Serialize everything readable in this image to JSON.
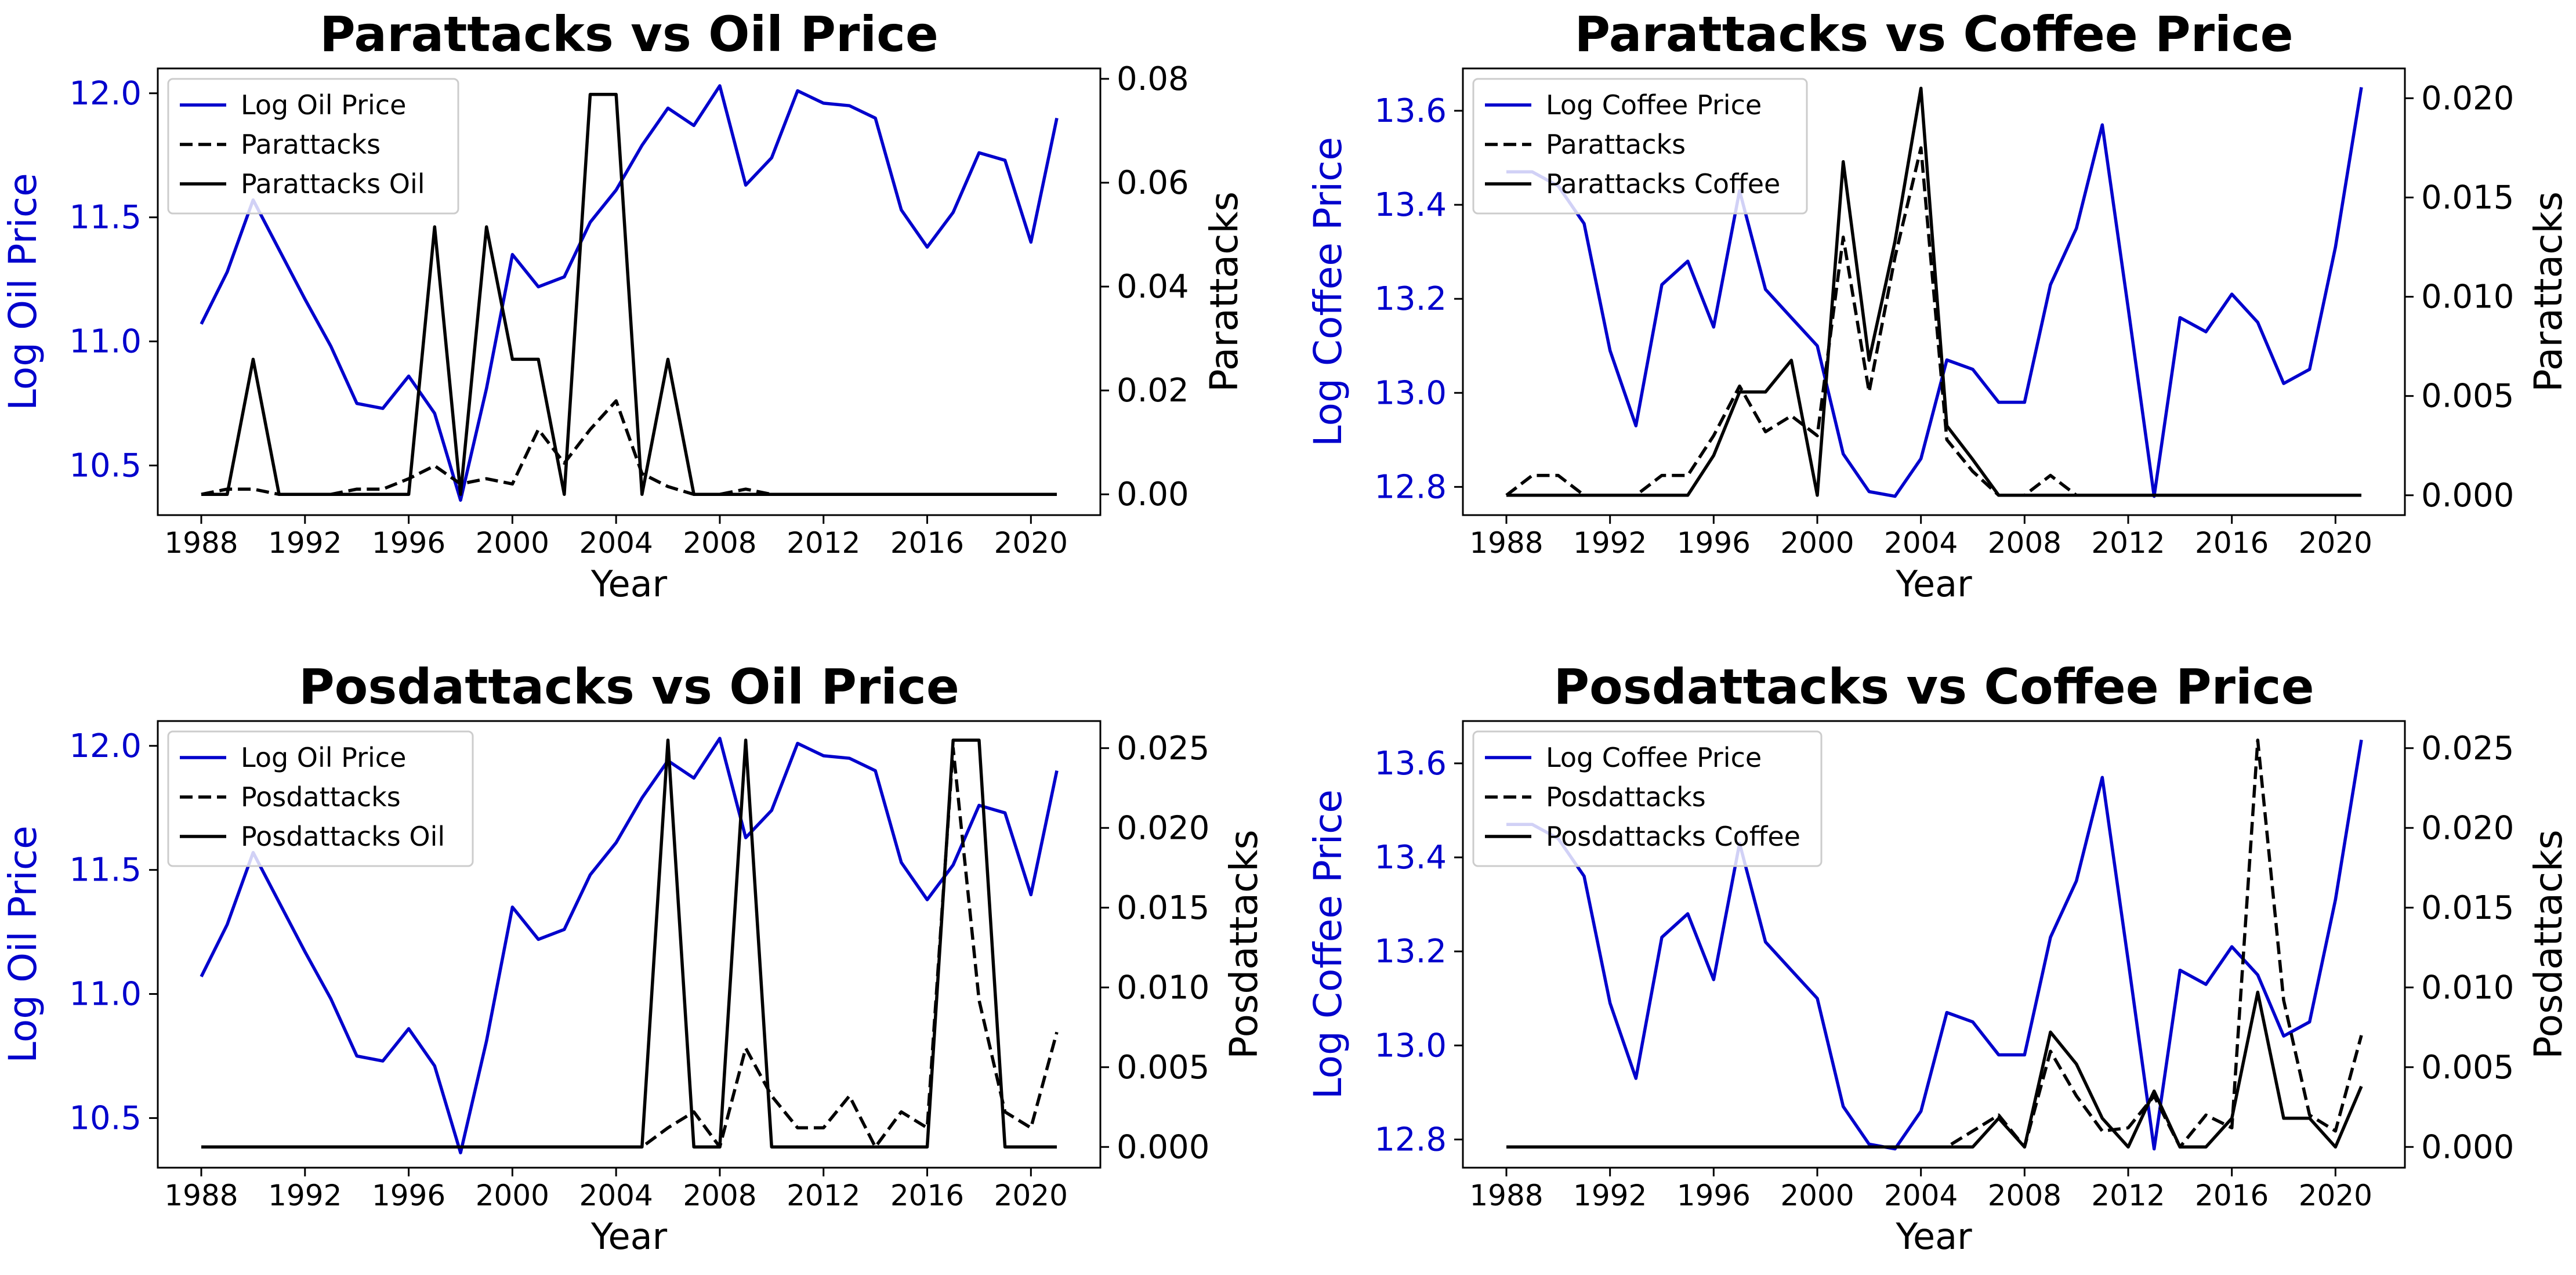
{
  "colors": {
    "oil": "#0000cc",
    "coffee": "#0000cc",
    "attacks": "#000000"
  },
  "chart_data": [
    {
      "type": "line",
      "title": "Parattacks vs Oil Price",
      "xlabel": "Year",
      "ylabel_left": "Log Oil Price",
      "ylabel_right": "Parattacks",
      "xlim": [
        1988,
        2021
      ],
      "ylim_left": [
        10.3,
        12.1
      ],
      "ylim_right": [
        -0.004,
        0.082
      ],
      "xticks": [
        "1988",
        "1992",
        "1996",
        "2000",
        "2004",
        "2008",
        "2012",
        "2016",
        "2020"
      ],
      "yticks_left": [
        "10.5",
        "11.0",
        "11.5",
        "12.0"
      ],
      "yticks_right": [
        "0.00",
        "0.02",
        "0.04",
        "0.06",
        "0.08"
      ],
      "legend_position": "top-left",
      "x": [
        1988,
        1989,
        1990,
        1991,
        1992,
        1993,
        1994,
        1995,
        1996,
        1997,
        1998,
        1999,
        2000,
        2001,
        2002,
        2003,
        2004,
        2005,
        2006,
        2007,
        2008,
        2009,
        2010,
        2011,
        2012,
        2013,
        2014,
        2015,
        2016,
        2017,
        2018,
        2019,
        2020,
        2021
      ],
      "series": [
        {
          "name": "Log Oil Price",
          "axis": "left",
          "style": "solid",
          "color": "#0000cc",
          "values": [
            11.07,
            11.28,
            11.57,
            11.37,
            11.17,
            10.98,
            10.75,
            10.73,
            10.86,
            10.71,
            10.36,
            10.81,
            11.35,
            11.22,
            11.26,
            11.48,
            11.61,
            11.79,
            11.94,
            11.87,
            12.03,
            11.63,
            11.74,
            12.01,
            11.96,
            11.95,
            11.9,
            11.53,
            11.38,
            11.52,
            11.76,
            11.73,
            11.4,
            11.9
          ]
        },
        {
          "name": "Parattacks",
          "axis": "right",
          "style": "dashed",
          "color": "#000000",
          "values": [
            0,
            0.001,
            0.001,
            0,
            0,
            0,
            0.001,
            0.001,
            0.003,
            0.0055,
            0.002,
            0.003,
            0.002,
            0.0125,
            0.006,
            0.0125,
            0.018,
            0.004,
            0.0015,
            0,
            0,
            0.001,
            0,
            0,
            0,
            0,
            0,
            0,
            0,
            0,
            0,
            0,
            0,
            0
          ]
        },
        {
          "name": "Parattacks Oil",
          "axis": "right",
          "style": "solid",
          "color": "#000000",
          "values": [
            0,
            0,
            0.026,
            0,
            0,
            0,
            0,
            0,
            0,
            0.0515,
            0,
            0.0515,
            0.026,
            0.026,
            0,
            0.077,
            0.077,
            0,
            0.026,
            0,
            0,
            0,
            0,
            0,
            0,
            0,
            0,
            0,
            0,
            0,
            0,
            0,
            0,
            0
          ]
        }
      ]
    },
    {
      "type": "line",
      "title": "Parattacks vs Coffee Price",
      "xlabel": "Year",
      "ylabel_left": "Log Coffee Price",
      "ylabel_right": "Parattacks",
      "xlim": [
        1988,
        2021
      ],
      "ylim_left": [
        12.74,
        13.69
      ],
      "ylim_right": [
        -0.001,
        0.0215
      ],
      "xticks": [
        "1988",
        "1992",
        "1996",
        "2000",
        "2004",
        "2008",
        "2012",
        "2016",
        "2020"
      ],
      "yticks_left": [
        "12.8",
        "13.0",
        "13.2",
        "13.4",
        "13.6"
      ],
      "yticks_right": [
        "0.000",
        "0.005",
        "0.010",
        "0.015",
        "0.020"
      ],
      "legend_position": "top-left",
      "x": [
        1988,
        1989,
        1990,
        1991,
        1992,
        1993,
        1994,
        1995,
        1996,
        1997,
        1998,
        1999,
        2000,
        2001,
        2002,
        2003,
        2004,
        2005,
        2006,
        2007,
        2008,
        2009,
        2010,
        2011,
        2012,
        2013,
        2014,
        2015,
        2016,
        2017,
        2018,
        2019,
        2020,
        2021
      ],
      "series": [
        {
          "name": "Log Coffee Price",
          "axis": "left",
          "style": "solid",
          "color": "#0000cc",
          "values": [
            13.47,
            13.47,
            13.44,
            13.36,
            13.09,
            12.93,
            13.23,
            13.28,
            13.14,
            13.43,
            13.22,
            13.16,
            13.1,
            12.87,
            12.79,
            12.78,
            12.86,
            13.07,
            13.05,
            12.98,
            12.98,
            13.23,
            13.35,
            13.57,
            13.18,
            12.78,
            13.16,
            13.13,
            13.21,
            13.15,
            13.02,
            13.05,
            13.31,
            13.65
          ]
        },
        {
          "name": "Parattacks",
          "axis": "right",
          "style": "dashed",
          "color": "#000000",
          "values": [
            0,
            0.001,
            0.001,
            0,
            0,
            0,
            0.001,
            0.001,
            0.003,
            0.0055,
            0.0032,
            0.004,
            0.003,
            0.013,
            0.0052,
            0.012,
            0.0175,
            0.0028,
            0.0012,
            0,
            0,
            0.001,
            0,
            0,
            0,
            0,
            0,
            0,
            0,
            0,
            0,
            0,
            0,
            0
          ]
        },
        {
          "name": "Parattacks Coffee",
          "axis": "right",
          "style": "solid",
          "color": "#000000",
          "values": [
            0,
            0,
            0,
            0,
            0,
            0,
            0,
            0,
            0.002,
            0.0052,
            0.0052,
            0.0068,
            0,
            0.0168,
            0.0068,
            0.0128,
            0.0205,
            0.0035,
            0.0018,
            0,
            0,
            0,
            0,
            0,
            0,
            0,
            0,
            0,
            0,
            0,
            0,
            0,
            0,
            0
          ]
        }
      ]
    },
    {
      "type": "line",
      "title": "Posdattacks vs Oil Price",
      "xlabel": "Year",
      "ylabel_left": "Log Oil Price",
      "ylabel_right": "Posdattacks",
      "xlim": [
        1988,
        2021
      ],
      "ylim_left": [
        10.3,
        12.1
      ],
      "ylim_right": [
        -0.0013,
        0.0267
      ],
      "xticks": [
        "1988",
        "1992",
        "1996",
        "2000",
        "2004",
        "2008",
        "2012",
        "2016",
        "2020"
      ],
      "yticks_left": [
        "10.5",
        "11.0",
        "11.5",
        "12.0"
      ],
      "yticks_right": [
        "0.000",
        "0.005",
        "0.010",
        "0.015",
        "0.020",
        "0.025"
      ],
      "legend_position": "top-left",
      "x": [
        1988,
        1989,
        1990,
        1991,
        1992,
        1993,
        1994,
        1995,
        1996,
        1997,
        1998,
        1999,
        2000,
        2001,
        2002,
        2003,
        2004,
        2005,
        2006,
        2007,
        2008,
        2009,
        2010,
        2011,
        2012,
        2013,
        2014,
        2015,
        2016,
        2017,
        2018,
        2019,
        2020,
        2021
      ],
      "series": [
        {
          "name": "Log Oil Price",
          "axis": "left",
          "style": "solid",
          "color": "#0000cc",
          "values": [
            11.07,
            11.28,
            11.57,
            11.37,
            11.17,
            10.98,
            10.75,
            10.73,
            10.86,
            10.71,
            10.36,
            10.81,
            11.35,
            11.22,
            11.26,
            11.48,
            11.61,
            11.79,
            11.94,
            11.87,
            12.03,
            11.63,
            11.74,
            12.01,
            11.96,
            11.95,
            11.9,
            11.53,
            11.38,
            11.52,
            11.76,
            11.73,
            11.4,
            11.9
          ]
        },
        {
          "name": "Posdattacks",
          "axis": "right",
          "style": "dashed",
          "color": "#000000",
          "values": [
            0,
            0,
            0,
            0,
            0,
            0,
            0,
            0,
            0,
            0,
            0,
            0,
            0,
            0,
            0,
            0,
            0,
            0,
            0.0012,
            0.0022,
            0,
            0.0062,
            0.0032,
            0.0012,
            0.0012,
            0.0032,
            0,
            0.0022,
            0.0012,
            0.025,
            0.0092,
            0.0022,
            0.0012,
            0.0072
          ]
        },
        {
          "name": "Posdattacks Oil",
          "axis": "right",
          "style": "solid",
          "color": "#000000",
          "values": [
            0,
            0,
            0,
            0,
            0,
            0,
            0,
            0,
            0,
            0,
            0,
            0,
            0,
            0,
            0,
            0,
            0,
            0,
            0.0255,
            0,
            0,
            0.0255,
            0,
            0,
            0,
            0,
            0,
            0,
            0,
            0.0255,
            0.0255,
            0,
            0,
            0
          ]
        }
      ]
    },
    {
      "type": "line",
      "title": "Posdattacks vs Coffee Price",
      "xlabel": "Year",
      "ylabel_left": "Log Coffee Price",
      "ylabel_right": "Posdattacks",
      "xlim": [
        1988,
        2021
      ],
      "ylim_left": [
        12.74,
        13.69
      ],
      "ylim_right": [
        -0.0013,
        0.0267
      ],
      "xticks": [
        "1988",
        "1992",
        "1996",
        "2000",
        "2004",
        "2008",
        "2012",
        "2016",
        "2020"
      ],
      "yticks_left": [
        "12.8",
        "13.0",
        "13.2",
        "13.4",
        "13.6"
      ],
      "yticks_right": [
        "0.000",
        "0.005",
        "0.010",
        "0.015",
        "0.020",
        "0.025"
      ],
      "legend_position": "top-left",
      "x": [
        1988,
        1989,
        1990,
        1991,
        1992,
        1993,
        1994,
        1995,
        1996,
        1997,
        1998,
        1999,
        2000,
        2001,
        2002,
        2003,
        2004,
        2005,
        2006,
        2007,
        2008,
        2009,
        2010,
        2011,
        2012,
        2013,
        2014,
        2015,
        2016,
        2017,
        2018,
        2019,
        2020,
        2021
      ],
      "series": [
        {
          "name": "Log Coffee Price",
          "axis": "left",
          "style": "solid",
          "color": "#0000cc",
          "values": [
            13.47,
            13.47,
            13.44,
            13.36,
            13.09,
            12.93,
            13.23,
            13.28,
            13.14,
            13.43,
            13.22,
            13.16,
            13.1,
            12.87,
            12.79,
            12.78,
            12.86,
            13.07,
            13.05,
            12.98,
            12.98,
            13.23,
            13.35,
            13.57,
            13.18,
            12.78,
            13.16,
            13.13,
            13.21,
            13.15,
            13.02,
            13.05,
            13.31,
            13.65
          ]
        },
        {
          "name": "Posdattacks",
          "axis": "right",
          "style": "dashed",
          "color": "#000000",
          "values": [
            0,
            0,
            0,
            0,
            0,
            0,
            0,
            0,
            0,
            0,
            0,
            0,
            0,
            0,
            0,
            0,
            0,
            0,
            0.001,
            0.002,
            0,
            0.006,
            0.0032,
            0.001,
            0.0012,
            0.0032,
            0,
            0.002,
            0.0012,
            0.0255,
            0.0092,
            0.002,
            0.001,
            0.007
          ]
        },
        {
          "name": "Posdattacks Coffee",
          "axis": "right",
          "style": "solid",
          "color": "#000000",
          "values": [
            0,
            0,
            0,
            0,
            0,
            0,
            0,
            0,
            0,
            0,
            0,
            0,
            0,
            0,
            0,
            0,
            0,
            0,
            0,
            0.0018,
            0,
            0.0072,
            0.0052,
            0.0018,
            0,
            0.0035,
            0,
            0,
            0.0018,
            0.0097,
            0.0018,
            0.0018,
            0,
            0.0038
          ]
        }
      ]
    }
  ]
}
